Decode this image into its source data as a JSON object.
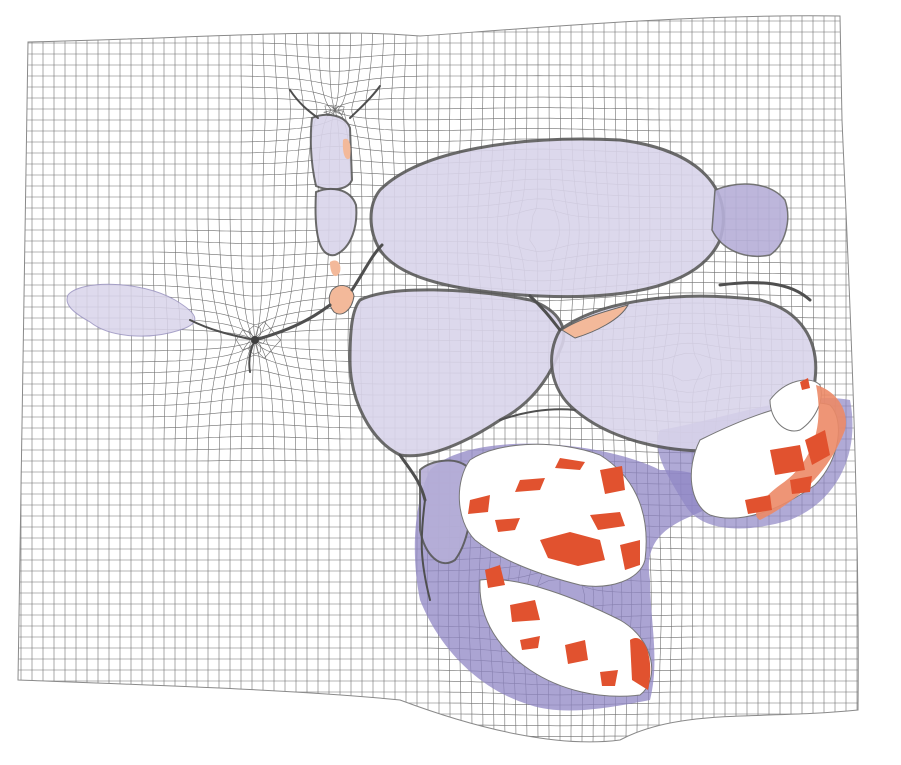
{
  "figure": {
    "description_text": "",
    "colors": {
      "background": "#ffffff",
      "grid_line": "#6e6e6e",
      "membrane": "#555555",
      "cell_fill": "#d9d4ea",
      "cell_fill_dark": "#7b6fb3",
      "cell_fill_mid": "#a79ed0",
      "highlight_orange": "#f3b99a",
      "fracture_red": "#e1522f",
      "fracture_salmon": "#ec8a67",
      "empty_white": "#ffffff"
    },
    "elements": {
      "deformed_grid": "deformed-grid",
      "cells": [
        "top-left-stalk-cell",
        "upper-large-cell",
        "center-large-cell",
        "right-large-cell",
        "left-lobe-cell",
        "lower-left-cell",
        "bottom-fractured-cell",
        "lower-right-fractured-cell",
        "bottom-small-fractured-cell"
      ],
      "junction_node": "junction-node"
    }
  }
}
